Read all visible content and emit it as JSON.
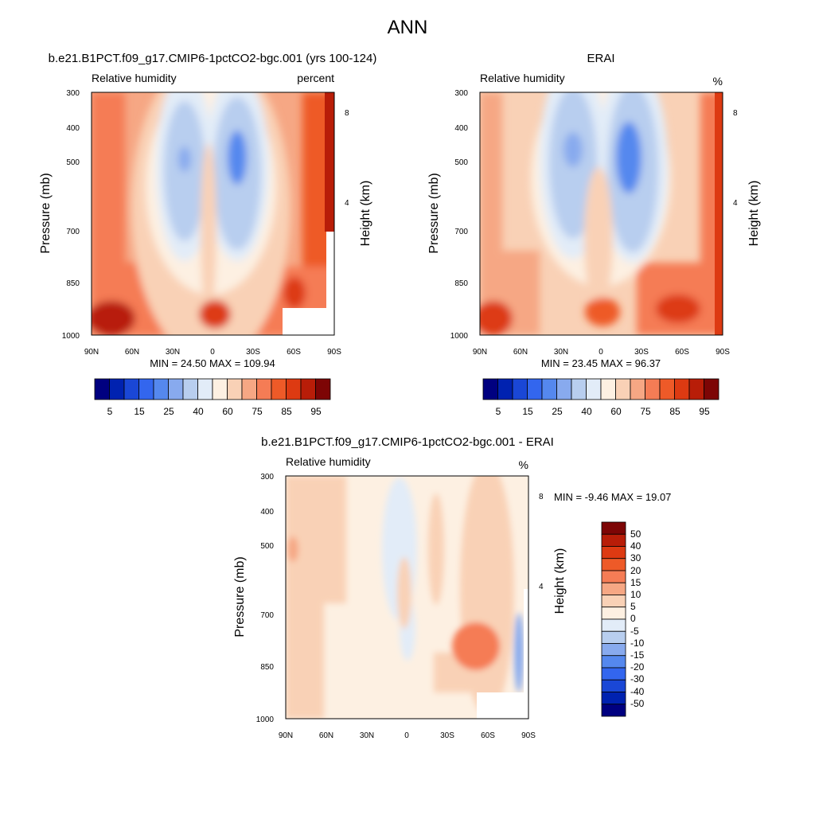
{
  "page_title": "ANN",
  "colors": {
    "axis": "#000000",
    "missing": "#ffffff",
    "rh_scale": [
      "#000080",
      "#0022b0",
      "#1a47d6",
      "#3366ee",
      "#5588ee",
      "#88aaee",
      "#b8ceef",
      "#e2ecf8",
      "#fdf0e2",
      "#f9d1b6",
      "#f6a784",
      "#f57c55",
      "#ee5a28",
      "#dd3a12",
      "#b81d08",
      "#7d0505"
    ],
    "diff_scale": [
      "#7d0505",
      "#b81d08",
      "#dd3a12",
      "#ee5a28",
      "#f57c55",
      "#f6a784",
      "#f9d1b6",
      "#fdf0e2",
      "#e2ecf8",
      "#b8ceef",
      "#88aaee",
      "#5588ee",
      "#3366ee",
      "#1a47d6",
      "#0022b0",
      "#000080"
    ]
  },
  "chart_data": [
    {
      "type": "heatmap",
      "panel_title": "b.e21.B1PCT.f09_g17.CMIP6-1pctCO2-bgc.001 (yrs 100-124)",
      "left_label": "Relative humidity",
      "right_label": "percent",
      "xlabel": "",
      "ylabel": "Pressure (mb)",
      "y2label": "Height (km)",
      "x_ticks": [
        "90N",
        "60N",
        "30N",
        "0",
        "30S",
        "60S",
        "90S"
      ],
      "y_ticks": [
        "300",
        "400",
        "500",
        "700",
        "850",
        "1000"
      ],
      "y2_ticks": [
        "8",
        "4"
      ],
      "stats": "MIN =  24.50  MAX = 109.94",
      "colorbar_labels": [
        "5",
        "15",
        "25",
        "40",
        "60",
        "75",
        "85",
        "95"
      ],
      "min": 24.5,
      "max": 109.94
    },
    {
      "type": "heatmap",
      "panel_title": "ERAI",
      "left_label": "Relative humidity",
      "right_label": "%",
      "xlabel": "",
      "ylabel": "Pressure (mb)",
      "y2label": "Height (km)",
      "x_ticks": [
        "90N",
        "60N",
        "30N",
        "0",
        "30S",
        "60S",
        "90S"
      ],
      "y_ticks": [
        "300",
        "400",
        "500",
        "700",
        "850",
        "1000"
      ],
      "y2_ticks": [
        "8",
        "4"
      ],
      "stats": "MIN =  23.45  MAX =  96.37",
      "colorbar_labels": [
        "5",
        "15",
        "25",
        "40",
        "60",
        "75",
        "85",
        "95"
      ],
      "min": 23.45,
      "max": 96.37
    },
    {
      "type": "heatmap",
      "panel_title": "b.e21.B1PCT.f09_g17.CMIP6-1pctCO2-bgc.001 - ERAI",
      "left_label": "Relative humidity",
      "right_label": "%",
      "xlabel": "",
      "ylabel": "Pressure (mb)",
      "y2label": "Height (km)",
      "x_ticks": [
        "90N",
        "60N",
        "30N",
        "0",
        "30S",
        "60S",
        "90S"
      ],
      "y_ticks": [
        "300",
        "400",
        "500",
        "700",
        "850",
        "1000"
      ],
      "y2_ticks": [
        "8",
        "4"
      ],
      "stats": "MIN =  -9.46  MAX =  19.07",
      "colorbar_labels": [
        "50",
        "40",
        "30",
        "20",
        "15",
        "10",
        "5",
        "0",
        "-5",
        "-10",
        "-15",
        "-20",
        "-30",
        "-40",
        "-50"
      ],
      "min": -9.46,
      "max": 19.07
    }
  ]
}
